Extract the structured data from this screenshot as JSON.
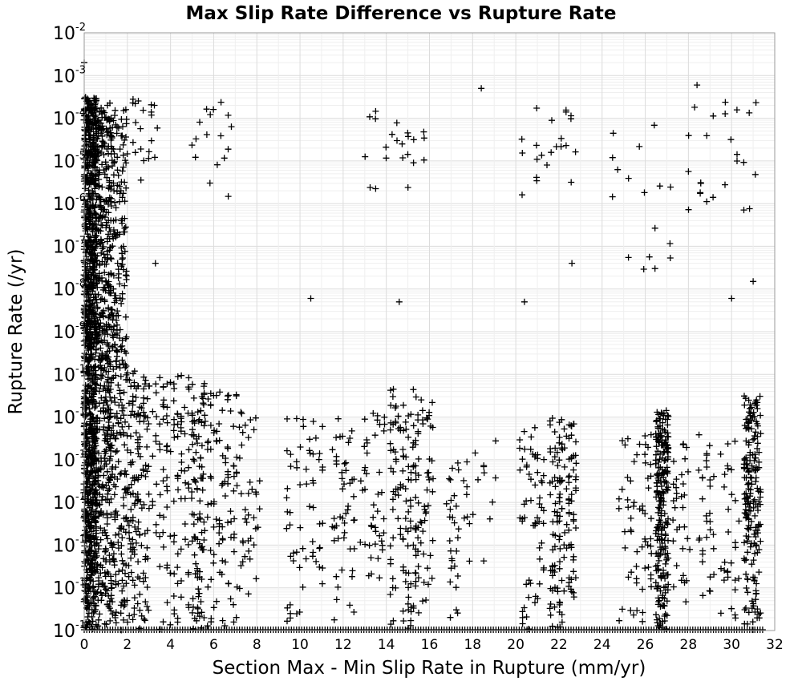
{
  "chart_data": {
    "type": "scatter",
    "title": "Max Slip Rate Difference vs Rupture Rate",
    "xlabel": "Section Max - Min Slip Rate in Rupture (mm/yr)",
    "ylabel": "Rupture Rate (/yr)",
    "xlim": [
      0,
      32
    ],
    "ylim": [
      1e-16,
      0.01
    ],
    "y_scale": "log",
    "grid": true,
    "marker": "plus",
    "marker_color": "#000000",
    "xticks": [
      "0",
      "2",
      "4",
      "6",
      "8",
      "10",
      "12",
      "14",
      "16",
      "18",
      "20",
      "22",
      "24",
      "26",
      "28",
      "30",
      "32"
    ],
    "yticks": [
      {
        "base": "10",
        "exp": "-16"
      },
      {
        "base": "10",
        "exp": "-15"
      },
      {
        "base": "10",
        "exp": "-14"
      },
      {
        "base": "10",
        "exp": "-13"
      },
      {
        "base": "10",
        "exp": "-12"
      },
      {
        "base": "10",
        "exp": "-11"
      },
      {
        "base": "10",
        "exp": "-10"
      },
      {
        "base": "10",
        "exp": "-9"
      },
      {
        "base": "10",
        "exp": "-8"
      },
      {
        "base": "10",
        "exp": "-7"
      },
      {
        "base": "10",
        "exp": "-6"
      },
      {
        "base": "10",
        "exp": "-5"
      },
      {
        "base": "10",
        "exp": "-4"
      },
      {
        "base": "10",
        "exp": "-3"
      },
      {
        "base": "10",
        "exp": "-2"
      }
    ],
    "clusters": [
      {
        "x_range": [
          0.0,
          0.6
        ],
        "log10_y_range": [
          -16.0,
          -3.5
        ],
        "weight": 2000
      },
      {
        "x_range": [
          0.6,
          1.3
        ],
        "log10_y_range": [
          -16.0,
          -3.6
        ],
        "weight": 900
      },
      {
        "x_range": [
          1.3,
          2.0
        ],
        "log10_y_range": [
          -16.0,
          -3.7
        ],
        "weight": 500
      },
      {
        "x_range": [
          2.0,
          3.0
        ],
        "log10_y_range": [
          -16.0,
          -9.8
        ],
        "weight": 260
      },
      {
        "x_range": [
          2.0,
          3.5
        ],
        "log10_y_range": [
          -5.5,
          -3.5
        ],
        "weight": 40
      },
      {
        "x_range": [
          3.0,
          5.0
        ],
        "log10_y_range": [
          -16.0,
          -10.0
        ],
        "weight": 220
      },
      {
        "x_range": [
          5.0,
          5.6
        ],
        "log10_y_range": [
          -16.0,
          -10.2
        ],
        "weight": 180
      },
      {
        "x_range": [
          5.0,
          7.0
        ],
        "log10_y_range": [
          -6.0,
          -3.5
        ],
        "weight": 30
      },
      {
        "x_range": [
          5.6,
          7.2
        ],
        "log10_y_range": [
          -16.0,
          -10.4
        ],
        "weight": 180
      },
      {
        "x_range": [
          7.2,
          8.2
        ],
        "log10_y_range": [
          -15.2,
          -10.8
        ],
        "weight": 70
      },
      {
        "x_range": [
          9.4,
          11.2
        ],
        "log10_y_range": [
          -15.8,
          -11.0
        ],
        "weight": 110
      },
      {
        "x_range": [
          11.5,
          12.6
        ],
        "log10_y_range": [
          -15.9,
          -11.0
        ],
        "weight": 90
      },
      {
        "x_range": [
          12.8,
          14.0
        ],
        "log10_y_range": [
          -15.0,
          -10.8
        ],
        "weight": 80
      },
      {
        "x_range": [
          14.2,
          15.6
        ],
        "log10_y_range": [
          -16.0,
          -10.3
        ],
        "weight": 240
      },
      {
        "x_range": [
          13.0,
          16.0
        ],
        "log10_y_range": [
          -5.8,
          -3.8
        ],
        "weight": 40
      },
      {
        "x_range": [
          15.6,
          16.2
        ],
        "log10_y_range": [
          -15.5,
          -10.5
        ],
        "weight": 70
      },
      {
        "x_range": [
          16.8,
          17.4
        ],
        "log10_y_range": [
          -15.8,
          -12.0
        ],
        "weight": 50
      },
      {
        "x_range": [
          17.6,
          19.2
        ],
        "log10_y_range": [
          -14.5,
          -11.5
        ],
        "weight": 35
      },
      {
        "x_range": [
          20.2,
          21.4
        ],
        "log10_y_range": [
          -16.0,
          -11.2
        ],
        "weight": 110
      },
      {
        "x_range": [
          21.6,
          22.9
        ],
        "log10_y_range": [
          -16.0,
          -11.0
        ],
        "weight": 260
      },
      {
        "x_range": [
          20.3,
          23.0
        ],
        "log10_y_range": [
          -5.8,
          -3.6
        ],
        "weight": 40
      },
      {
        "x_range": [
          24.8,
          26.4
        ],
        "log10_y_range": [
          -15.8,
          -11.4
        ],
        "weight": 110
      },
      {
        "x_range": [
          26.5,
          27.1
        ],
        "log10_y_range": [
          -16.0,
          -10.8
        ],
        "weight": 420
      },
      {
        "x_range": [
          27.3,
          28.2
        ],
        "log10_y_range": [
          -15.5,
          -11.5
        ],
        "weight": 60
      },
      {
        "x_range": [
          28.5,
          30.5
        ],
        "log10_y_range": [
          -15.8,
          -11.4
        ],
        "weight": 110
      },
      {
        "x_range": [
          30.6,
          31.4
        ],
        "log10_y_range": [
          -16.0,
          -10.5
        ],
        "weight": 360
      },
      {
        "x_range": [
          28.0,
          31.4
        ],
        "log10_y_range": [
          -6.2,
          -3.6
        ],
        "weight": 45
      },
      {
        "x_range": [
          24.5,
          27.4
        ],
        "log10_y_range": [
          -7.8,
          -3.8
        ],
        "weight": 30
      }
    ],
    "notable_points": [
      {
        "x": 0.0,
        "y": 0.002
      },
      {
        "x": 18.4,
        "y": 0.0005
      },
      {
        "x": 28.4,
        "y": 0.0006
      },
      {
        "x": 22.6,
        "y": 4e-08
      },
      {
        "x": 31.0,
        "y": 1.5e-08
      },
      {
        "x": 10.5,
        "y": 6e-09
      },
      {
        "x": 14.6,
        "y": 5e-09
      },
      {
        "x": 20.4,
        "y": 5e-09
      },
      {
        "x": 30.0,
        "y": 6e-09
      },
      {
        "x": 3.3,
        "y": 4e-08
      }
    ],
    "floor_points_x_range": [
      0.0,
      31.5
    ],
    "floor_y": 1e-16
  }
}
